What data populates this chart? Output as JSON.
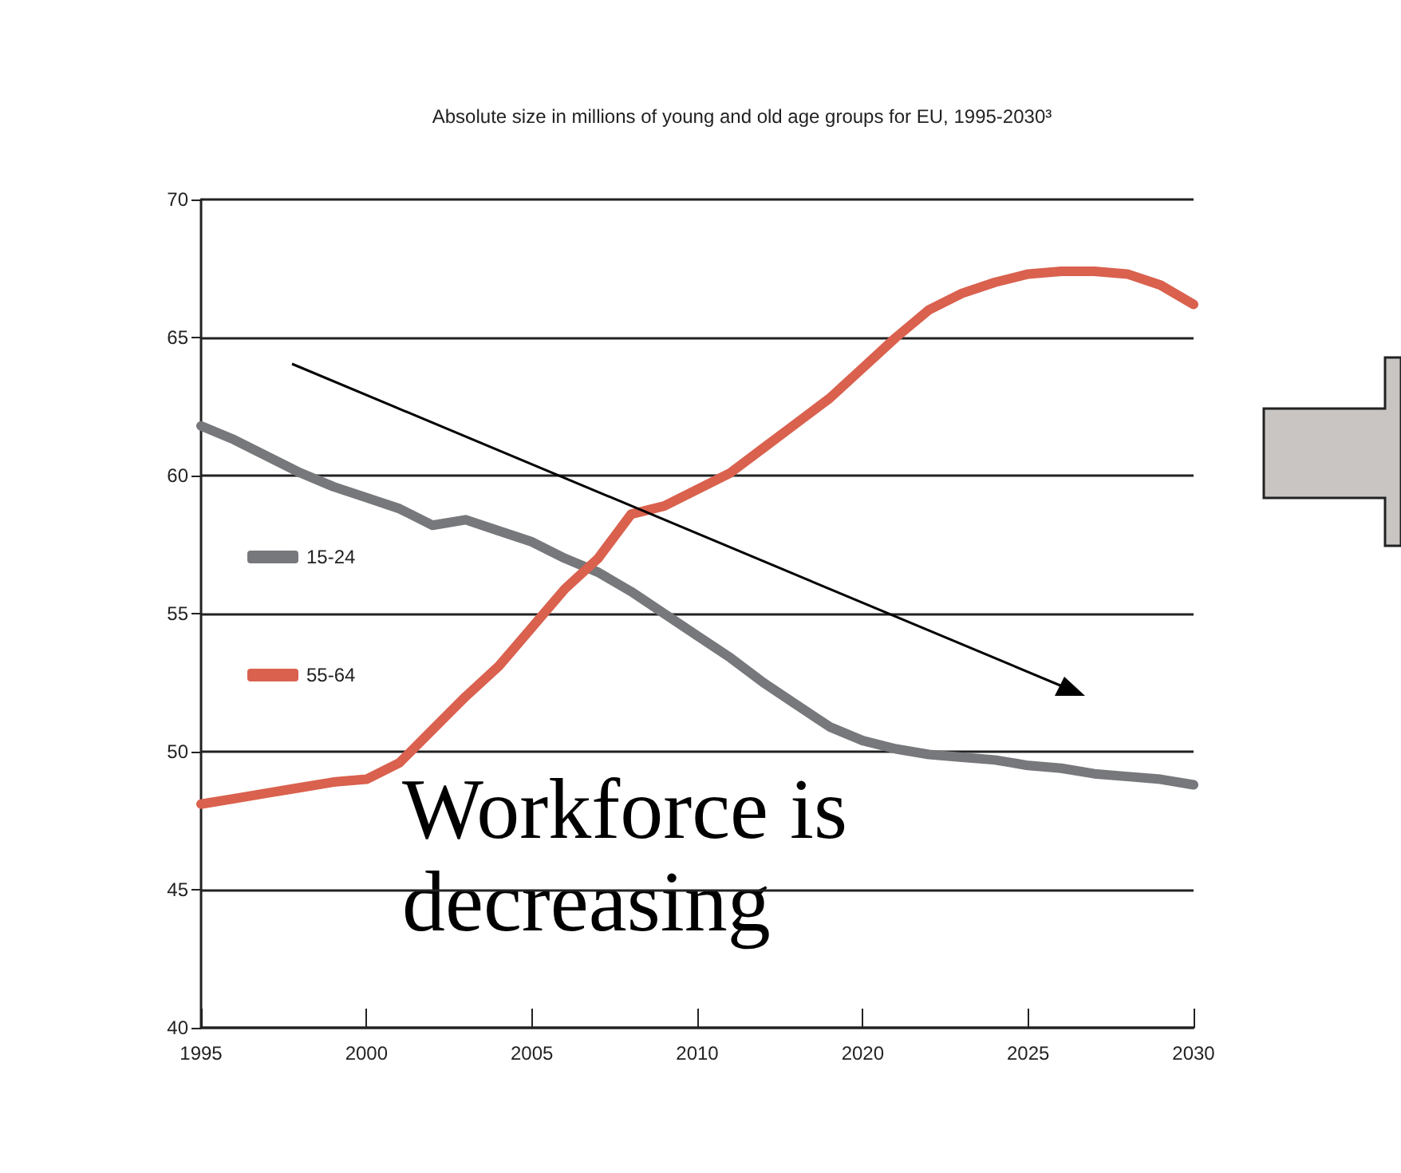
{
  "chart_data": {
    "type": "line",
    "title": "Absolute size in millions of young and old age groups for EU, 1995-2030³",
    "categories": [
      "1995",
      null,
      null,
      null,
      null,
      "2000",
      null,
      null,
      null,
      null,
      "2005",
      null,
      null,
      null,
      null,
      "2010",
      null,
      null,
      null,
      null,
      "2020",
      null,
      null,
      null,
      null,
      "2025",
      null,
      null,
      null,
      null,
      "2030"
    ],
    "series": [
      {
        "name": "15-24",
        "color": "#77787b",
        "values": [
          61.8,
          61.3,
          60.7,
          60.1,
          59.6,
          59.2,
          58.8,
          58.2,
          58.4,
          58.0,
          57.6,
          57.0,
          56.5,
          55.8,
          55.0,
          54.2,
          53.4,
          52.5,
          51.7,
          50.9,
          50.4,
          50.1,
          49.9,
          49.8,
          49.7,
          49.5,
          49.4,
          49.2,
          49.1,
          49.0,
          48.8
        ]
      },
      {
        "name": "55-64",
        "color": "#d9614e",
        "values": [
          48.1,
          48.3,
          48.5,
          48.7,
          48.9,
          49.0,
          49.6,
          50.8,
          52.0,
          53.1,
          54.5,
          55.9,
          57.0,
          58.6,
          58.9,
          59.5,
          60.1,
          61.0,
          61.9,
          62.8,
          63.9,
          65.0,
          66.0,
          66.6,
          67.0,
          67.3,
          67.4,
          67.4,
          67.3,
          66.9,
          66.2
        ]
      }
    ],
    "ylim": [
      40,
      70
    ],
    "yticks": [
      40,
      45,
      50,
      55,
      60,
      65,
      70
    ],
    "grid": "y",
    "legend": "left",
    "marker": "none",
    "line_style": "solid",
    "annotations": [
      "Workforce is decreasing"
    ]
  }
}
